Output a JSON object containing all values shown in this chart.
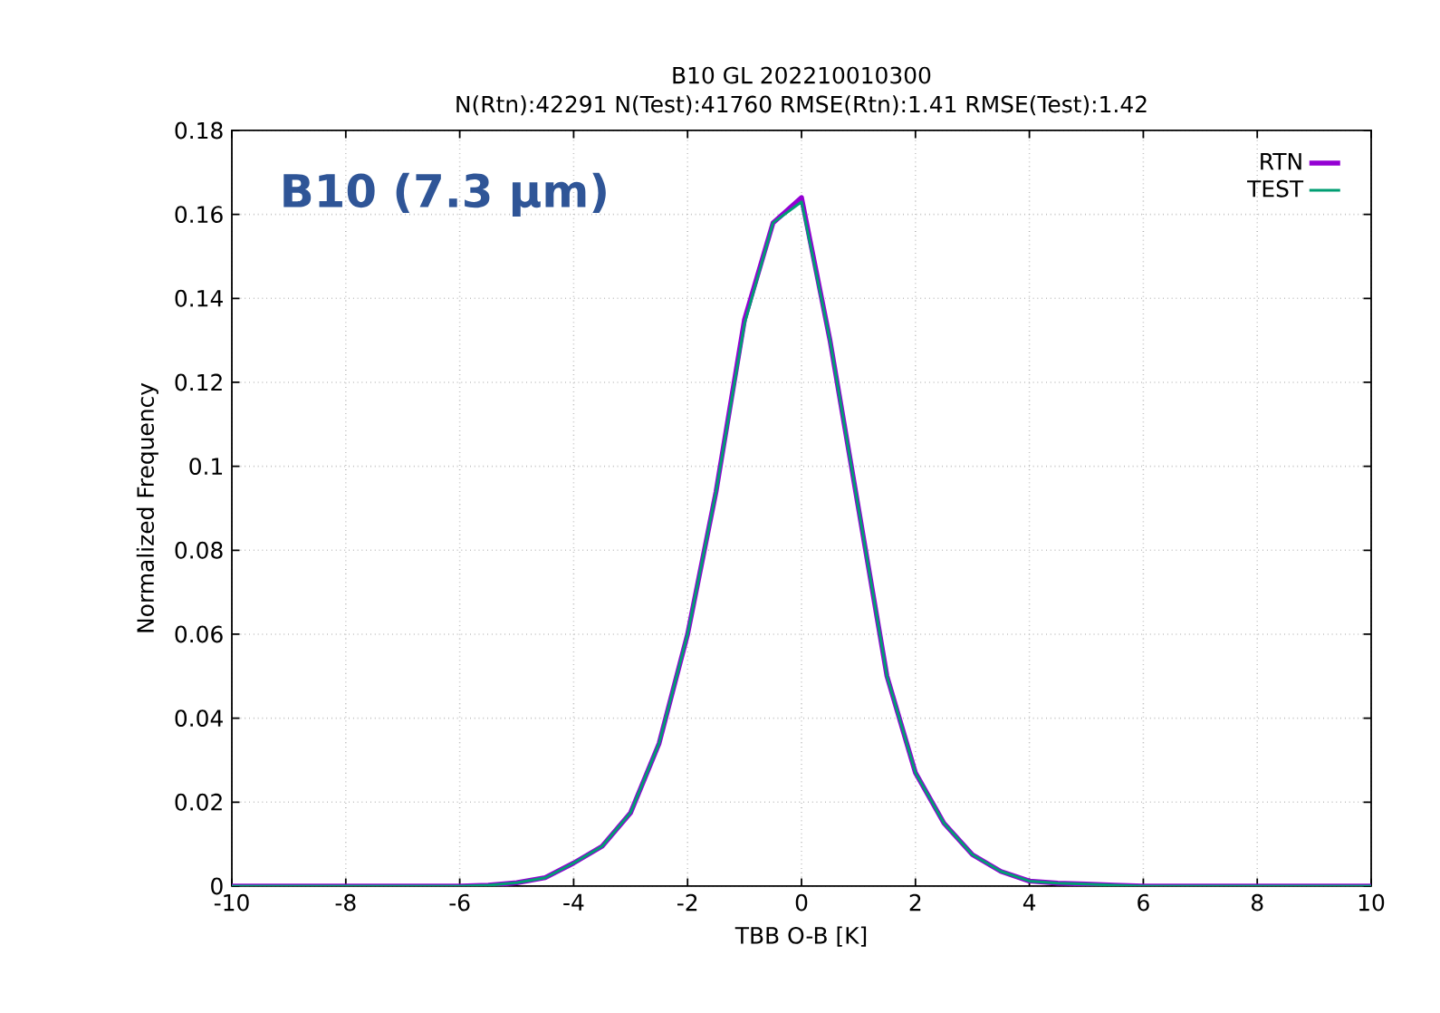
{
  "chart_data": {
    "type": "line",
    "title": "B10 GL 202210010300",
    "subtitle": "N(Rtn):42291 N(Test):41760 RMSE(Rtn):1.41 RMSE(Test):1.42",
    "xlabel": "TBB O-B [K]",
    "ylabel": "Normalized Frequency",
    "annotations": [
      "B10 (7.3 μm)"
    ],
    "x": [
      -10,
      -9.5,
      -9,
      -8.5,
      -8,
      -7.5,
      -7,
      -6.5,
      -6,
      -5.5,
      -5,
      -4.5,
      -4,
      -3.5,
      -3,
      -2.5,
      -2,
      -1.5,
      -1,
      -0.5,
      0,
      0.5,
      1,
      1.5,
      2,
      2.5,
      3,
      3.5,
      4,
      4.5,
      5,
      5.5,
      6,
      6.5,
      7,
      7.5,
      8,
      8.5,
      9,
      9.5,
      10
    ],
    "series": [
      {
        "name": "RTN",
        "color": "#9400d3",
        "values": [
          0,
          0,
          0,
          0,
          0,
          0,
          0,
          0,
          0,
          0.0002,
          0.0008,
          0.002,
          0.0055,
          0.0095,
          0.0175,
          0.034,
          0.06,
          0.094,
          0.135,
          0.158,
          0.164,
          0.13,
          0.09,
          0.05,
          0.027,
          0.015,
          0.0075,
          0.0035,
          0.0012,
          0.0007,
          0.0005,
          0.0002,
          0,
          0,
          0,
          0,
          0,
          0,
          0,
          0,
          0
        ]
      },
      {
        "name": "TEST",
        "color": "#009e73",
        "values": [
          0,
          0,
          0,
          0,
          0,
          0,
          0,
          0,
          0,
          0.0002,
          0.0008,
          0.002,
          0.0055,
          0.0095,
          0.0175,
          0.034,
          0.06,
          0.094,
          0.134,
          0.158,
          0.163,
          0.13,
          0.09,
          0.05,
          0.027,
          0.015,
          0.0075,
          0.0035,
          0.0012,
          0.0007,
          0.0005,
          0.0002,
          0,
          0,
          0,
          0,
          0,
          0,
          0,
          0,
          0
        ]
      }
    ],
    "xlim": [
      -10,
      10
    ],
    "ylim": [
      0,
      0.18
    ],
    "xticks": [
      -10,
      -8,
      -6,
      -4,
      -2,
      0,
      2,
      4,
      6,
      8,
      10
    ],
    "yticks": [
      0,
      0.02,
      0.04,
      0.06,
      0.08,
      0.1,
      0.12,
      0.14,
      0.16,
      0.18
    ],
    "grid": true,
    "legend": "top right",
    "marker": "none",
    "line_style": "solid"
  }
}
